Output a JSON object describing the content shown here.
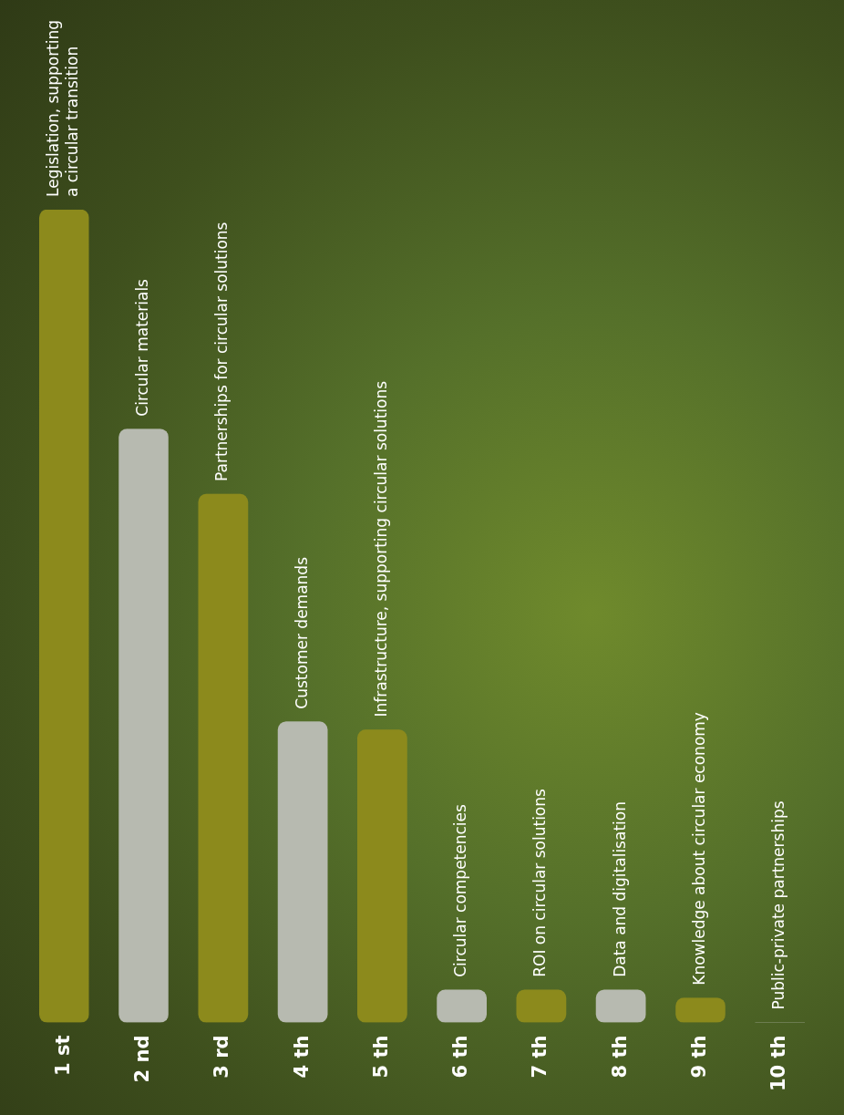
{
  "chart_data": {
    "type": "bar",
    "orientation": "horizontal",
    "categories": [
      "1 st",
      "2 nd",
      "3 rd",
      "4 th",
      "5 th",
      "6 th",
      "7 th",
      "8 th",
      "9 th",
      "10 th"
    ],
    "values": [
      100,
      73,
      65,
      37,
      36,
      4,
      4,
      4,
      3,
      0
    ],
    "annotations": [
      "Legislation, supporting a circular transition",
      "Circular materials",
      "Partnerships for circular solutions",
      "Customer demands",
      "Infrastructure, supporting circular solutions",
      "Circular competencies",
      "ROI on circular solutions",
      "Data and digitalisation",
      "Knowledge about circular economy",
      "Public-private partnerships"
    ],
    "colors": [
      "#8c8a1c",
      "#b7bab0",
      "#8c8a1c",
      "#b7bab0",
      "#8c8a1c",
      "#b7bab0",
      "#8c8a1c",
      "#b7bab0",
      "#8c8a1c",
      "#b7bab0"
    ],
    "xlim": [
      0,
      100
    ],
    "grid": false,
    "tick_labels": "y"
  }
}
